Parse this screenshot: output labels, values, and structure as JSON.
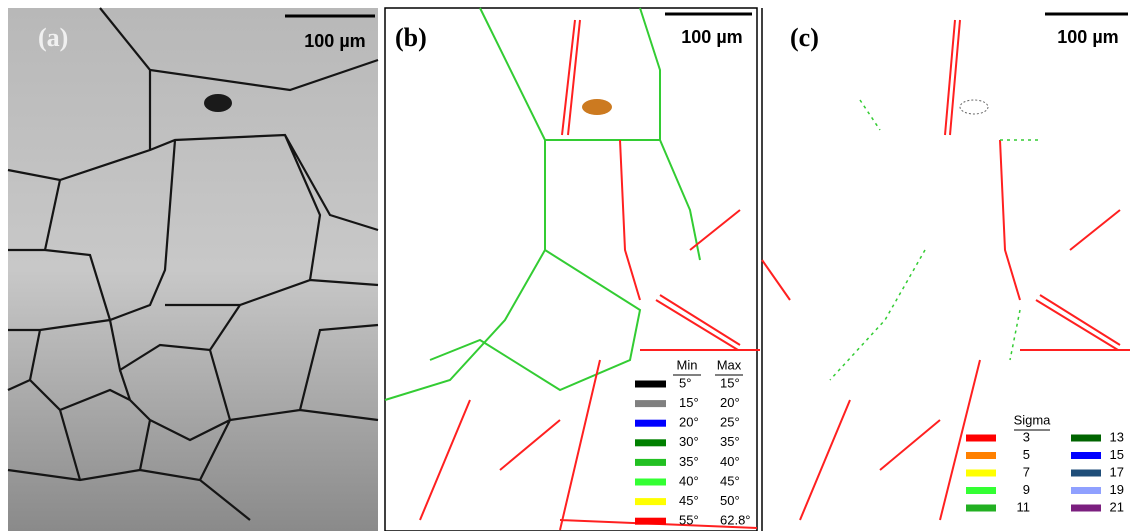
{
  "panels": [
    {
      "label": "(a)",
      "scale_bar": "100 µm"
    },
    {
      "label": "(b)",
      "scale_bar": "100 µm"
    },
    {
      "label": "(c)",
      "scale_bar": "100 µm"
    }
  ],
  "legend_b": {
    "headers": [
      "Min",
      "Max"
    ],
    "rows": [
      {
        "min": "5°",
        "max": "15°",
        "color": "#000000"
      },
      {
        "min": "15°",
        "max": "20°",
        "color": "#808080"
      },
      {
        "min": "20°",
        "max": "25°",
        "color": "#0000ff"
      },
      {
        "min": "30°",
        "max": "35°",
        "color": "#008000"
      },
      {
        "min": "35°",
        "max": "40°",
        "color": "#22c022"
      },
      {
        "min": "40°",
        "max": "45°",
        "color": "#33ff33"
      },
      {
        "min": "45°",
        "max": "50°",
        "color": "#ffff00"
      },
      {
        "min": "55°",
        "max": "62.8°",
        "color": "#ff0000"
      }
    ]
  },
  "legend_c": {
    "title": "Sigma",
    "items": [
      {
        "sigma": 3,
        "color": "#ff0000"
      },
      {
        "sigma": 5,
        "color": "#ff8000"
      },
      {
        "sigma": 7,
        "color": "#ffff00"
      },
      {
        "sigma": 9,
        "color": "#33ff33"
      },
      {
        "sigma": 11,
        "color": "#22b022"
      },
      {
        "sigma": 13,
        "color": "#006400"
      },
      {
        "sigma": 15,
        "color": "#0000ff"
      },
      {
        "sigma": 17,
        "color": "#1f4e79"
      },
      {
        "sigma": 19,
        "color": "#8fa0ff"
      },
      {
        "sigma": 21,
        "color": "#7b1f7f"
      }
    ]
  }
}
